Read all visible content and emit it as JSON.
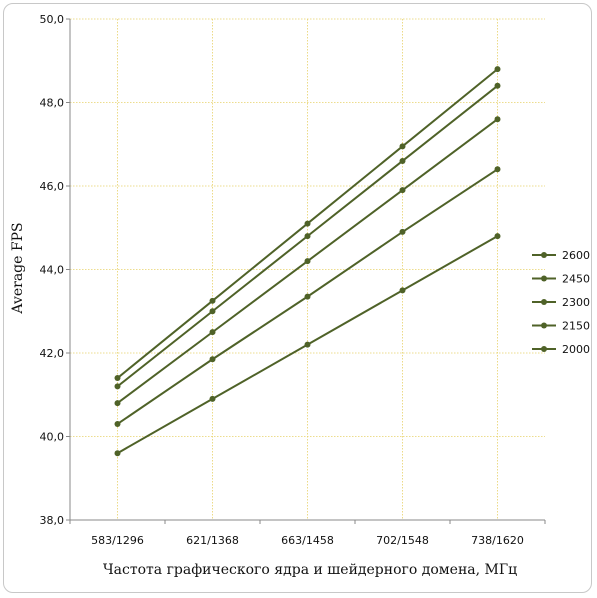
{
  "chart_data": {
    "type": "line",
    "title": "",
    "xlabel": "Частота графического ядра и шейдерного домена, МГц",
    "ylabel": "Average FPS",
    "categories": [
      "583/1296",
      "621/1368",
      "663/1458",
      "702/1548",
      "738/1620"
    ],
    "ylim": [
      38,
      50
    ],
    "yticks": [
      "38,0",
      "40,0",
      "42,0",
      "44,0",
      "46,0",
      "48,0",
      "50,0"
    ],
    "grid": true,
    "legend_position": "right",
    "line_color": "#4f6228",
    "grid_color": "#e8d26a",
    "series": [
      {
        "name": "2600",
        "values": [
          41.4,
          43.25,
          45.1,
          46.95,
          48.8
        ]
      },
      {
        "name": "2450",
        "values": [
          41.2,
          43.0,
          44.8,
          46.6,
          48.4
        ]
      },
      {
        "name": "2300",
        "values": [
          40.8,
          42.5,
          44.2,
          45.9,
          47.6
        ]
      },
      {
        "name": "2150",
        "values": [
          40.3,
          41.85,
          43.35,
          44.9,
          46.4
        ]
      },
      {
        "name": "2000",
        "values": [
          39.6,
          40.9,
          42.2,
          43.5,
          44.8
        ]
      }
    ]
  }
}
